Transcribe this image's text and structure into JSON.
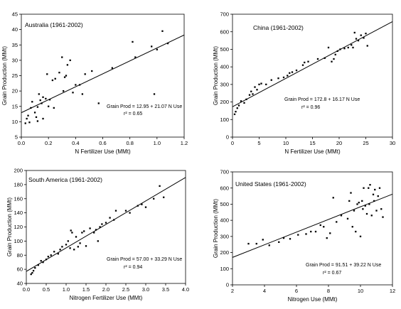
{
  "chart_data": [
    {
      "type": "scatter",
      "title": "Australia (1961-2002)",
      "xlabel": "N Fertilizer Use (MMt)",
      "ylabel": "Grain Production (MMt)",
      "xlim": [
        0,
        1.2
      ],
      "ylim": [
        5,
        45
      ],
      "xticks": [
        0,
        0.2,
        0.4,
        0.6,
        0.8,
        1,
        1.2
      ],
      "xtick_labels": [
        "0.0",
        "0.2",
        "0.4",
        "0.6",
        "0.8",
        "1.0",
        "1.2"
      ],
      "yticks": [
        5,
        10,
        15,
        20,
        25,
        30,
        35,
        40,
        45
      ],
      "ytick_labels": [
        "5",
        "10",
        "15",
        "20",
        "25",
        "30",
        "35",
        "40",
        "45"
      ],
      "equation": "Grain Prod = 12.95 + 21.07 N Use",
      "r2": "r² = 0.65",
      "fit": {
        "intercept": 12.95,
        "slope": 21.07
      },
      "fit_xrange": [
        0,
        1.2
      ],
      "points": [
        [
          0.03,
          9.5
        ],
        [
          0.04,
          11
        ],
        [
          0.05,
          12
        ],
        [
          0.06,
          9.8
        ],
        [
          0.07,
          14.5
        ],
        [
          0.08,
          16.5
        ],
        [
          0.1,
          13
        ],
        [
          0.11,
          11.5
        ],
        [
          0.12,
          14.8
        ],
        [
          0.12,
          10.2
        ],
        [
          0.13,
          19
        ],
        [
          0.14,
          17
        ],
        [
          0.15,
          16
        ],
        [
          0.16,
          18
        ],
        [
          0.16,
          11
        ],
        [
          0.18,
          17.5
        ],
        [
          0.19,
          25.5
        ],
        [
          0.2,
          15
        ],
        [
          0.21,
          17.2
        ],
        [
          0.23,
          23.5
        ],
        [
          0.24,
          14.5
        ],
        [
          0.25,
          24
        ],
        [
          0.28,
          26
        ],
        [
          0.3,
          31
        ],
        [
          0.31,
          20
        ],
        [
          0.32,
          24.5
        ],
        [
          0.33,
          25
        ],
        [
          0.34,
          28.5
        ],
        [
          0.36,
          30
        ],
        [
          0.38,
          19.5
        ],
        [
          0.4,
          22
        ],
        [
          0.43,
          22
        ],
        [
          0.45,
          19
        ],
        [
          0.47,
          25.5
        ],
        [
          0.52,
          26.5
        ],
        [
          0.57,
          16
        ],
        [
          0.67,
          27.5
        ],
        [
          0.82,
          36
        ],
        [
          0.84,
          31
        ],
        [
          0.96,
          34.5
        ],
        [
          0.98,
          19
        ],
        [
          1.0,
          33.5
        ],
        [
          1.04,
          39.5
        ],
        [
          1.08,
          35.5
        ]
      ]
    },
    {
      "type": "scatter",
      "title": "China (1961-2002)",
      "xlabel": "N Fertilizer Use (MMt)",
      "ylabel": "Grain Production (MMt)",
      "xlim": [
        0,
        30
      ],
      "ylim": [
        0,
        700
      ],
      "xticks": [
        0,
        5,
        10,
        15,
        20,
        25,
        30
      ],
      "xtick_labels": [
        "0",
        "5",
        "10",
        "15",
        "20",
        "25",
        "30"
      ],
      "yticks": [
        0,
        100,
        200,
        300,
        400,
        500,
        600,
        700
      ],
      "ytick_labels": [
        "0",
        "100",
        "200",
        "300",
        "400",
        "500",
        "600",
        "700"
      ],
      "equation": "Grain Prod = 172.8 + 16.17 N Use",
      "r2": "r² = 0.96",
      "fit": {
        "intercept": 172.8,
        "slope": 16.17
      },
      "fit_xrange": [
        0,
        30
      ],
      "points": [
        [
          0.4,
          130
        ],
        [
          0.6,
          145
        ],
        [
          0.9,
          165
        ],
        [
          1.2,
          180
        ],
        [
          1.6,
          205
        ],
        [
          2.2,
          195
        ],
        [
          2.6,
          215
        ],
        [
          3.2,
          240
        ],
        [
          3.5,
          260
        ],
        [
          3.8,
          245
        ],
        [
          4.2,
          285
        ],
        [
          4.6,
          270
        ],
        [
          5.0,
          300
        ],
        [
          5.4,
          305
        ],
        [
          6.3,
          300
        ],
        [
          7.3,
          325
        ],
        [
          8.6,
          335
        ],
        [
          9.6,
          340
        ],
        [
          10.3,
          350
        ],
        [
          10.7,
          365
        ],
        [
          11.2,
          370
        ],
        [
          12.0,
          380
        ],
        [
          13.2,
          410
        ],
        [
          13.5,
          425
        ],
        [
          14.2,
          430
        ],
        [
          16.0,
          445
        ],
        [
          17.3,
          450
        ],
        [
          18.0,
          510
        ],
        [
          18.6,
          430
        ],
        [
          19.0,
          445
        ],
        [
          19.3,
          470
        ],
        [
          19.7,
          490
        ],
        [
          20.2,
          500
        ],
        [
          21.0,
          505
        ],
        [
          21.7,
          510
        ],
        [
          22.3,
          525
        ],
        [
          22.6,
          510
        ],
        [
          22.9,
          595
        ],
        [
          23.2,
          560
        ],
        [
          23.6,
          550
        ],
        [
          24.1,
          580
        ],
        [
          24.6,
          565
        ],
        [
          25.0,
          590
        ],
        [
          25.3,
          520
        ]
      ]
    },
    {
      "type": "scatter",
      "title": "South America (1961-2002)",
      "xlabel": "Nitrogen Fertilizer Use (MMt)",
      "ylabel": "Grain Production (MMt)",
      "xlim": [
        0,
        4
      ],
      "ylim": [
        40,
        200
      ],
      "xticks": [
        0,
        0.5,
        1,
        1.5,
        2,
        2.5,
        3,
        3.5,
        4
      ],
      "xtick_labels": [
        "0.0",
        "0.5",
        "1.0",
        "1.5",
        "2.0",
        "2.5",
        "3.0",
        "3.5",
        "4.0"
      ],
      "yticks": [
        40,
        60,
        80,
        100,
        120,
        140,
        160,
        180,
        200
      ],
      "ytick_labels": [
        "40",
        "60",
        "80",
        "100",
        "120",
        "140",
        "160",
        "180",
        "200"
      ],
      "equation": "Grain Prod = 57.00 + 33.29 N Use",
      "r2": "r² = 0.94",
      "fit": {
        "intercept": 57.0,
        "slope": 33.29
      },
      "fit_xrange": [
        0,
        4
      ],
      "points": [
        [
          0.12,
          53
        ],
        [
          0.15,
          55
        ],
        [
          0.18,
          58
        ],
        [
          0.22,
          62
        ],
        [
          0.3,
          66
        ],
        [
          0.37,
          72
        ],
        [
          0.42,
          70
        ],
        [
          0.5,
          74
        ],
        [
          0.55,
          78
        ],
        [
          0.62,
          80
        ],
        [
          0.7,
          85
        ],
        [
          0.8,
          82
        ],
        [
          0.85,
          88
        ],
        [
          0.9,
          92
        ],
        [
          1.0,
          95
        ],
        [
          1.05,
          100
        ],
        [
          1.1,
          90
        ],
        [
          1.12,
          115
        ],
        [
          1.15,
          112
        ],
        [
          1.2,
          88
        ],
        [
          1.25,
          106
        ],
        [
          1.3,
          92
        ],
        [
          1.35,
          97
        ],
        [
          1.4,
          112
        ],
        [
          1.45,
          114
        ],
        [
          1.5,
          93
        ],
        [
          1.6,
          118
        ],
        [
          1.7,
          112
        ],
        [
          1.75,
          116
        ],
        [
          1.8,
          100
        ],
        [
          1.85,
          120
        ],
        [
          1.9,
          124
        ],
        [
          2.0,
          126
        ],
        [
          2.1,
          133
        ],
        [
          2.2,
          130
        ],
        [
          2.25,
          143
        ],
        [
          2.5,
          143
        ],
        [
          2.6,
          140
        ],
        [
          2.8,
          150
        ],
        [
          2.9,
          152
        ],
        [
          3.0,
          148
        ],
        [
          3.2,
          160
        ],
        [
          3.35,
          178
        ],
        [
          3.45,
          162
        ]
      ]
    },
    {
      "type": "scatter",
      "title": "United States (1961-2002)",
      "xlabel": "Nitrogen Use (MMt)",
      "ylabel": "Grain Production (MMt)",
      "xlim": [
        2,
        12
      ],
      "ylim": [
        0,
        700
      ],
      "xticks": [
        2,
        4,
        6,
        8,
        10,
        12
      ],
      "xtick_labels": [
        "2",
        "4",
        "6",
        "8",
        "10",
        "12"
      ],
      "yticks": [
        0,
        100,
        200,
        300,
        400,
        500,
        600,
        700
      ],
      "ytick_labels": [
        "0",
        "100",
        "200",
        "300",
        "400",
        "500",
        "600",
        "700"
      ],
      "equation": "Grain Prod = 91.51 + 39.22 N Use",
      "r2": "r² = 0.67",
      "fit": {
        "intercept": 91.51,
        "slope": 39.22
      },
      "fit_xrange": [
        2,
        12
      ],
      "points": [
        [
          3.0,
          255
        ],
        [
          3.5,
          255
        ],
        [
          3.9,
          280
        ],
        [
          4.3,
          245
        ],
        [
          4.9,
          265
        ],
        [
          5.2,
          290
        ],
        [
          5.6,
          285
        ],
        [
          6.1,
          310
        ],
        [
          6.6,
          315
        ],
        [
          6.9,
          330
        ],
        [
          7.2,
          330
        ],
        [
          7.5,
          370
        ],
        [
          7.7,
          360
        ],
        [
          7.9,
          290
        ],
        [
          8.1,
          320
        ],
        [
          8.3,
          540
        ],
        [
          8.5,
          390
        ],
        [
          8.8,
          430
        ],
        [
          9.2,
          410
        ],
        [
          9.3,
          520
        ],
        [
          9.4,
          570
        ],
        [
          9.5,
          360
        ],
        [
          9.6,
          460
        ],
        [
          9.7,
          330
        ],
        [
          9.8,
          500
        ],
        [
          9.9,
          510
        ],
        [
          10.0,
          300
        ],
        [
          10.1,
          520
        ],
        [
          10.15,
          470
        ],
        [
          10.2,
          600
        ],
        [
          10.3,
          490
        ],
        [
          10.4,
          440
        ],
        [
          10.5,
          600
        ],
        [
          10.55,
          500
        ],
        [
          10.6,
          620
        ],
        [
          10.7,
          430
        ],
        [
          10.8,
          560
        ],
        [
          10.85,
          520
        ],
        [
          10.9,
          590
        ],
        [
          11.0,
          460
        ],
        [
          11.1,
          550
        ],
        [
          11.2,
          600
        ],
        [
          11.3,
          470
        ],
        [
          11.4,
          420
        ]
      ]
    }
  ]
}
